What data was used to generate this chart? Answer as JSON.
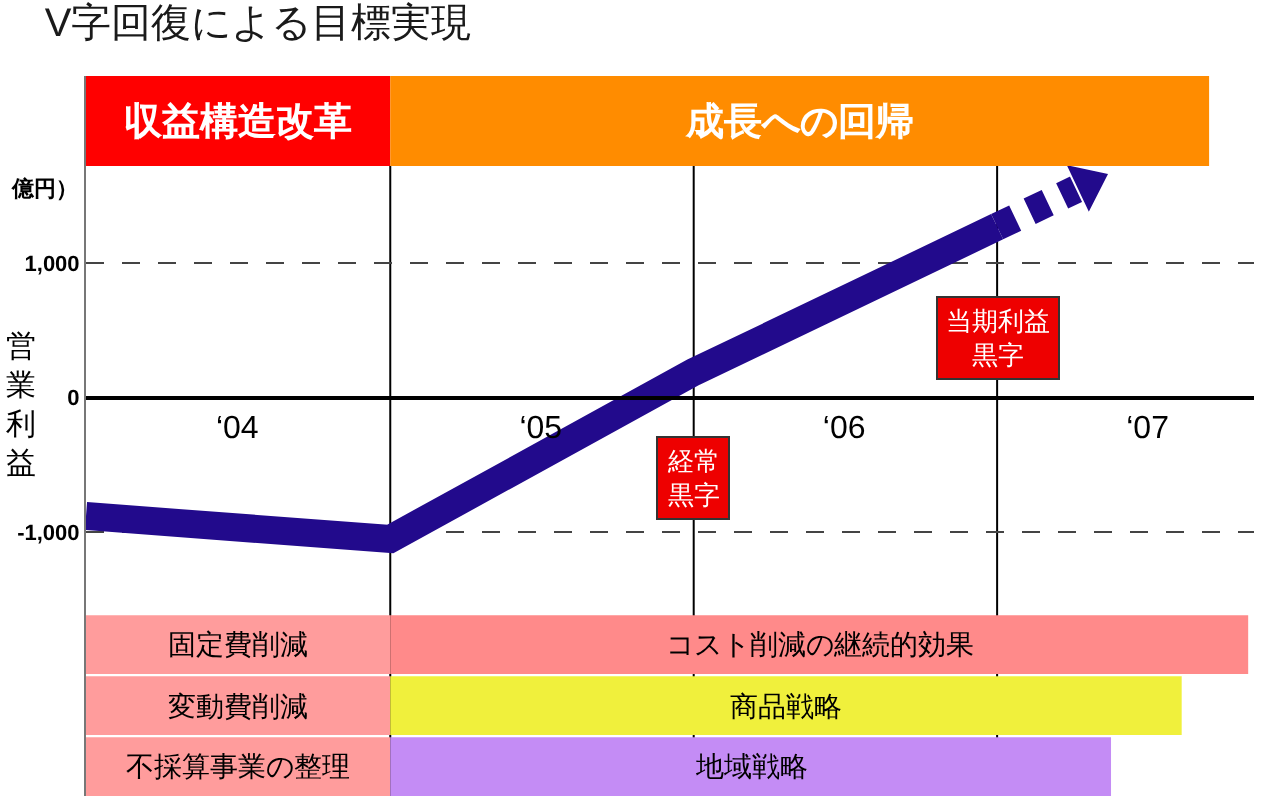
{
  "chart_data": {
    "type": "line",
    "title": "V字回復による目標実現",
    "ylabel": "営業利益",
    "annotations": [
      "億円）",
      {
        "text": "経常黒字",
        "x": "2006",
        "y": -600
      },
      {
        "text": "当期利益黒字",
        "x": "2007",
        "y": 450
      }
    ],
    "series": [
      {
        "color": "#220a8c",
        "x": [
          "2004",
          "2005",
          "2006",
          "2007"
        ],
        "values": [
          -880,
          -1050,
          190,
          1270
        ]
      },
      {
        "color": "#220a8c",
        "x": [
          "2007",
          "2007-04-20"
        ],
        "values": [
          1270,
          1590
        ],
        "line_style": "dashed",
        "marker": "triangle"
      }
    ],
    "xlim": [
      "2004",
      "2007-11-06"
    ],
    "xticks": [
      {
        "value": "2004-07-01",
        "label": "‘04"
      },
      {
        "value": "2005-07-01",
        "label": "‘05"
      },
      {
        "value": "2006-07-01",
        "label": "‘06"
      },
      {
        "value": "2007-07-01",
        "label": "‘07"
      }
    ],
    "ylim": [
      -2960,
      2390
    ],
    "yticks": [
      {
        "value": -1000,
        "label": "-1,000"
      },
      0,
      {
        "value": 1000,
        "label": "1,000"
      }
    ],
    "grid": "y",
    "ref_lines": [
      {
        "axis": "x",
        "value": "2005",
        "color": "#000000"
      },
      {
        "axis": "x",
        "value": "2006",
        "color": "#000000"
      },
      {
        "axis": "x",
        "value": "2007",
        "color": "#000000"
      }
    ],
    "bands": [
      {
        "axis": "x",
        "from": "2004",
        "to": "2005",
        "label": "収益構造改革",
        "color": "#ff0000"
      },
      {
        "axis": "x",
        "from": "2005",
        "to": "2007-09-13",
        "label": "成長への回帰",
        "color": "#ff8c00"
      },
      {
        "axis": "x",
        "from": "2004",
        "to": "2005",
        "label": "固定費削減",
        "color": "#ff9c9c"
      },
      {
        "axis": "x",
        "from": "2005",
        "to": "2007-10-30",
        "label": "コスト削減の継続的効果",
        "color": "#ff8a8a"
      },
      {
        "axis": "x",
        "from": "2004",
        "to": "2005",
        "label": "変動費削減",
        "color": "#ff9c9c"
      },
      {
        "axis": "x",
        "from": "2005",
        "to": "2007-08-11",
        "label": "商品戦略",
        "color": "#f0f03c"
      },
      {
        "axis": "x",
        "from": "2004",
        "to": "2005",
        "label": "不採算事業の整理",
        "color": "#ff9c9c"
      },
      {
        "axis": "x",
        "from": "2005",
        "to": "2007-05-18",
        "label": "地域戦略",
        "color": "#c48cf5"
      }
    ]
  }
}
